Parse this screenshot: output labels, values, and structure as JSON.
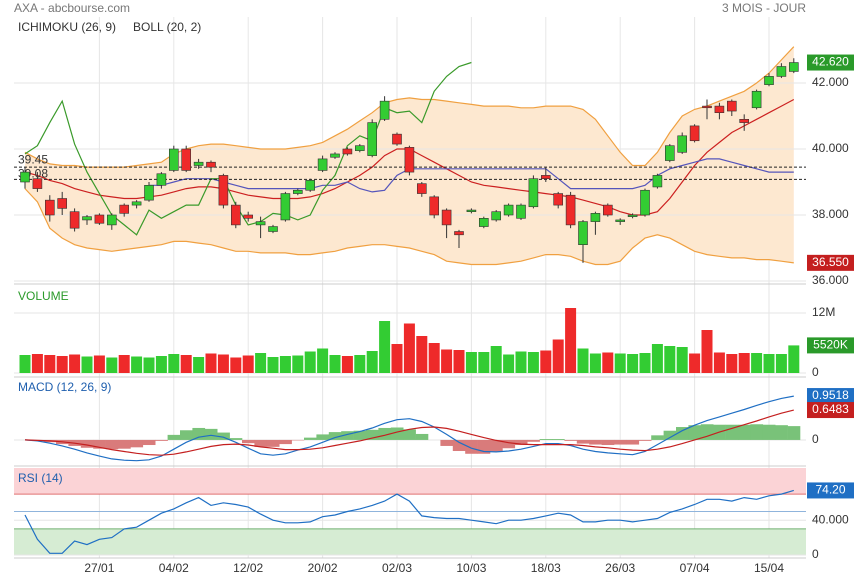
{
  "chart_data": [
    {
      "type": "candlestick",
      "title": "AXA - abcbourse.com",
      "subtitle": "3 MOIS - JOUR",
      "ylim": [
        36,
        44
      ],
      "yticks": [
        {
          "value": 42,
          "label": "42.000"
        },
        {
          "value": 40,
          "label": "40.000"
        },
        {
          "value": 38,
          "label": "38.000"
        },
        {
          "value": 36,
          "label": "36.000"
        }
      ],
      "up_color": "#33cc33",
      "down_color": "#ee2a2a",
      "open": [
        39.0,
        39.1,
        38.45,
        38.5,
        38.1,
        37.85,
        38.0,
        37.7,
        38.3,
        38.3,
        38.45,
        38.9,
        39.35,
        40.0,
        39.5,
        39.6,
        39.2,
        38.3,
        38.0,
        37.7,
        37.5,
        37.85,
        38.65,
        38.75,
        39.35,
        39.75,
        40.0,
        39.95,
        39.8,
        40.9,
        40.45,
        40.05,
        38.95,
        38.55,
        38.15,
        37.5,
        38.1,
        37.65,
        37.85,
        38.0,
        37.9,
        38.25,
        39.2,
        38.65,
        38.6,
        37.1,
        37.8,
        38.3,
        37.8,
        37.95,
        38.0,
        38.85,
        39.65,
        39.9,
        40.7,
        41.3,
        41.3,
        41.45,
        40.9,
        41.25,
        41.95,
        42.2,
        42.35
      ],
      "high": [
        39.45,
        39.3,
        38.6,
        38.7,
        38.2,
        38.0,
        38.05,
        38.05,
        38.35,
        38.45,
        39.0,
        39.3,
        40.1,
        40.1,
        39.7,
        39.65,
        39.25,
        38.4,
        38.1,
        37.95,
        37.7,
        38.7,
        38.8,
        39.1,
        39.8,
        39.9,
        40.05,
        40.15,
        40.9,
        41.6,
        40.5,
        40.1,
        39.0,
        38.6,
        38.2,
        37.55,
        38.2,
        37.95,
        38.15,
        38.35,
        38.35,
        39.2,
        39.45,
        38.7,
        38.7,
        37.85,
        38.1,
        38.35,
        37.9,
        38.05,
        38.8,
        39.25,
        40.15,
        40.5,
        40.75,
        41.5,
        41.4,
        41.5,
        41.05,
        41.8,
        42.3,
        42.6,
        42.75
      ],
      "low": [
        38.8,
        38.7,
        37.8,
        38.0,
        37.5,
        37.7,
        37.7,
        37.55,
        37.95,
        38.2,
        38.4,
        38.8,
        39.3,
        39.3,
        39.4,
        39.3,
        38.2,
        37.6,
        37.8,
        37.3,
        37.45,
        37.8,
        38.6,
        38.7,
        39.3,
        39.7,
        39.8,
        39.9,
        39.75,
        40.85,
        40.1,
        39.2,
        38.55,
        37.9,
        37.3,
        37.0,
        38.05,
        37.6,
        37.8,
        37.95,
        37.85,
        38.2,
        39.0,
        38.2,
        37.6,
        36.55,
        37.4,
        37.95,
        37.7,
        37.9,
        37.95,
        38.8,
        39.6,
        39.85,
        40.2,
        40.9,
        40.9,
        41.0,
        40.55,
        41.2,
        41.9,
        42.15,
        42.3
      ],
      "close": [
        39.3,
        38.8,
        38.0,
        38.2,
        37.6,
        37.95,
        37.75,
        38.0,
        38.05,
        38.4,
        38.9,
        39.25,
        40.0,
        39.35,
        39.6,
        39.45,
        38.3,
        37.7,
        37.9,
        37.8,
        37.65,
        38.65,
        38.75,
        39.05,
        39.7,
        39.85,
        39.85,
        40.1,
        40.8,
        41.45,
        40.15,
        39.3,
        38.65,
        38.0,
        37.7,
        37.4,
        38.15,
        37.9,
        38.1,
        38.3,
        38.3,
        39.1,
        39.1,
        38.3,
        37.7,
        37.8,
        38.05,
        38.0,
        37.85,
        38.0,
        38.75,
        39.2,
        40.1,
        40.4,
        40.25,
        41.25,
        41.1,
        41.15,
        40.8,
        41.75,
        42.2,
        42.5,
        42.62
      ],
      "close_label": "42.620",
      "levels": [
        39.45,
        39.08
      ],
      "bollinger": {
        "name": "BOLL (20, 2)",
        "color": "#f0a040",
        "fill": "#fde8d0",
        "mid_color": "#cc2020",
        "upper": [
          39.9,
          39.7,
          39.55,
          39.5,
          39.5,
          39.45,
          39.45,
          39.45,
          39.45,
          39.5,
          39.55,
          39.6,
          39.85,
          40.0,
          40.1,
          40.15,
          40.15,
          40.1,
          40.05,
          40.0,
          40.0,
          40.0,
          40.05,
          40.1,
          40.2,
          40.4,
          40.6,
          40.85,
          41.1,
          41.4,
          41.5,
          41.55,
          41.5,
          41.5,
          41.45,
          41.4,
          41.35,
          41.3,
          41.3,
          41.3,
          41.25,
          41.25,
          41.3,
          41.3,
          41.3,
          41.2,
          40.9,
          40.4,
          39.9,
          39.5,
          39.5,
          39.9,
          40.5,
          41.0,
          41.2,
          41.3,
          41.45,
          41.6,
          41.75,
          42.0,
          42.3,
          42.7,
          43.1
        ],
        "middle": [
          39.3,
          39.2,
          39.05,
          38.95,
          38.8,
          38.7,
          38.6,
          38.55,
          38.5,
          38.5,
          38.55,
          38.6,
          38.7,
          38.8,
          38.85,
          38.85,
          38.8,
          38.7,
          38.6,
          38.55,
          38.5,
          38.5,
          38.5,
          38.55,
          38.65,
          38.8,
          39.0,
          39.2,
          39.45,
          39.8,
          40.0,
          40.0,
          39.8,
          39.6,
          39.4,
          39.2,
          39.0,
          38.9,
          38.85,
          38.8,
          38.75,
          38.7,
          38.65,
          38.6,
          38.55,
          38.45,
          38.35,
          38.25,
          38.1,
          38.0,
          38.0,
          38.1,
          38.5,
          39.0,
          39.5,
          39.9,
          40.2,
          40.5,
          40.7,
          40.9,
          41.1,
          41.3,
          41.5
        ],
        "lower": [
          38.8,
          38.4,
          37.6,
          37.3,
          37.1,
          37.0,
          36.95,
          36.9,
          36.95,
          37.0,
          37.05,
          37.1,
          37.2,
          37.2,
          37.15,
          37.1,
          37.0,
          36.9,
          36.9,
          36.85,
          36.85,
          36.85,
          36.8,
          36.8,
          36.85,
          36.9,
          37.0,
          37.05,
          37.1,
          37.1,
          37.05,
          37.0,
          36.9,
          36.8,
          36.6,
          36.55,
          36.5,
          36.5,
          36.5,
          36.55,
          36.6,
          36.7,
          36.8,
          36.8,
          36.75,
          36.6,
          36.5,
          36.5,
          36.6,
          37.0,
          37.3,
          37.4,
          37.3,
          37.1,
          36.9,
          36.8,
          36.75,
          36.7,
          36.7,
          36.65,
          36.65,
          36.6,
          36.55
        ],
        "lower_label": "36.550"
      },
      "ichimoku": {
        "name": "ICHIMOKU (26, 9)",
        "color": "#1f5fae",
        "chikou_color": "#3a9a2a",
        "kijun_color": "#5555bb",
        "chikou": [
          39.85,
          40.1,
          40.8,
          41.45,
          40.15,
          39.3,
          38.65,
          38.0,
          37.7,
          37.4,
          38.15,
          37.9,
          38.1,
          38.3,
          38.3,
          39.1,
          39.1,
          38.3,
          37.7,
          37.8,
          38.05,
          38.0,
          37.85,
          38.0,
          38.75,
          39.2,
          40.1,
          40.4,
          40.25,
          41.25,
          41.1,
          41.15,
          40.8,
          41.75,
          42.2,
          42.5,
          42.62,
          null,
          null,
          null,
          null,
          null,
          null,
          null,
          null,
          null,
          null,
          null,
          null,
          null,
          null,
          null,
          null,
          null,
          null,
          null,
          null,
          null,
          null,
          null,
          null,
          null,
          null
        ],
        "kijun": [
          null,
          null,
          null,
          null,
          null,
          null,
          null,
          null,
          null,
          null,
          38.9,
          38.9,
          39.0,
          39.1,
          39.1,
          39.1,
          39.0,
          38.9,
          38.8,
          38.8,
          38.8,
          38.8,
          38.8,
          38.8,
          38.9,
          38.9,
          39.0,
          38.8,
          38.7,
          38.75,
          39.2,
          39.4,
          39.4,
          39.4,
          39.4,
          39.4,
          39.4,
          39.4,
          39.4,
          39.4,
          39.4,
          39.4,
          39.4,
          39.1,
          38.8,
          38.8,
          38.8,
          38.8,
          38.8,
          38.8,
          38.9,
          39.2,
          39.4,
          39.5,
          39.6,
          39.7,
          39.7,
          39.6,
          39.5,
          39.4,
          39.3,
          39.3,
          39.3
        ]
      }
    },
    {
      "type": "bar",
      "title": "VOLUME",
      "ylim": [
        0,
        17
      ],
      "yticks": [
        {
          "value": 12,
          "label": "12M"
        },
        0
      ],
      "values": [
        3.6,
        3.8,
        3.6,
        3.4,
        3.7,
        3.3,
        3.5,
        3.1,
        3.6,
        3.3,
        3.1,
        3.4,
        3.8,
        3.6,
        3.2,
        3.9,
        3.7,
        3.1,
        3.5,
        4.0,
        3.2,
        3.4,
        3.5,
        4.3,
        4.9,
        3.6,
        3.4,
        3.6,
        4.4,
        10.4,
        5.8,
        9.9,
        7.4,
        6.0,
        4.7,
        4.6,
        4.2,
        4.2,
        5.4,
        3.7,
        4.3,
        4.2,
        4.5,
        6.7,
        13.0,
        4.9,
        3.9,
        4.1,
        3.9,
        3.8,
        4.0,
        5.8,
        5.4,
        5.2,
        3.9,
        8.6,
        4.1,
        3.8,
        4.0,
        4.0,
        3.8,
        3.8,
        5.52
      ],
      "last_label": "5520K"
    },
    {
      "type": "line",
      "title": "MACD (12, 26, 9)",
      "ylim": [
        -0.5,
        1.3
      ],
      "yticks": [
        0
      ],
      "histogram": {
        "up_color": "#79c279",
        "down_color": "#d97b7b",
        "values": [
          0,
          -0.01,
          -0.05,
          -0.09,
          -0.13,
          -0.17,
          -0.19,
          -0.2,
          -0.19,
          -0.16,
          -0.11,
          -0.02,
          0.11,
          0.21,
          0.26,
          0.24,
          0.16,
          0.04,
          -0.07,
          -0.15,
          -0.15,
          -0.09,
          -0.01,
          0.05,
          0.12,
          0.17,
          0.19,
          0.2,
          0.22,
          0.26,
          0.27,
          0.23,
          0.13,
          0.0,
          -0.13,
          -0.24,
          -0.3,
          -0.3,
          -0.25,
          -0.18,
          -0.11,
          -0.04,
          0.02,
          0.02,
          -0.02,
          -0.08,
          -0.1,
          -0.11,
          -0.1,
          -0.1,
          -0.02,
          0.1,
          0.2,
          0.28,
          0.32,
          0.34,
          0.33,
          0.33,
          0.33,
          0.34,
          0.33,
          0.32,
          0.3
        ]
      },
      "series": [
        {
          "color": "#1f6fc4",
          "last_label": "0.9518",
          "values": [
            0,
            -0.02,
            -0.07,
            -0.13,
            -0.2,
            -0.28,
            -0.35,
            -0.41,
            -0.44,
            -0.45,
            -0.43,
            -0.35,
            -0.2,
            -0.05,
            0.06,
            0.1,
            0.06,
            -0.05,
            -0.18,
            -0.3,
            -0.33,
            -0.3,
            -0.22,
            -0.15,
            -0.05,
            0.05,
            0.12,
            0.18,
            0.26,
            0.36,
            0.44,
            0.46,
            0.4,
            0.28,
            0.12,
            -0.05,
            -0.18,
            -0.25,
            -0.26,
            -0.24,
            -0.2,
            -0.14,
            -0.08,
            -0.08,
            -0.12,
            -0.2,
            -0.25,
            -0.28,
            -0.3,
            -0.32,
            -0.25,
            -0.1,
            0.05,
            0.2,
            0.32,
            0.42,
            0.5,
            0.58,
            0.66,
            0.75,
            0.83,
            0.9,
            0.9518
          ]
        },
        {
          "color": "#c41f1f",
          "last_label": "0.6483",
          "values": [
            0,
            -0.01,
            -0.02,
            -0.04,
            -0.07,
            -0.11,
            -0.16,
            -0.21,
            -0.25,
            -0.29,
            -0.32,
            -0.33,
            -0.31,
            -0.26,
            -0.2,
            -0.14,
            -0.1,
            -0.09,
            -0.11,
            -0.15,
            -0.18,
            -0.21,
            -0.21,
            -0.2,
            -0.17,
            -0.12,
            -0.07,
            -0.02,
            0.04,
            0.1,
            0.17,
            0.23,
            0.27,
            0.28,
            0.25,
            0.19,
            0.12,
            0.05,
            -0.01,
            -0.06,
            -0.09,
            -0.1,
            -0.1,
            -0.1,
            -0.1,
            -0.12,
            -0.15,
            -0.17,
            -0.2,
            -0.22,
            -0.23,
            -0.2,
            -0.15,
            -0.08,
            0.0,
            0.08,
            0.17,
            0.25,
            0.33,
            0.41,
            0.5,
            0.58,
            0.6483
          ]
        }
      ]
    },
    {
      "type": "line",
      "title": "RSI (14)",
      "ylim": [
        0,
        100
      ],
      "yticks": [
        {
          "value": 40,
          "label": "40.000"
        },
        0
      ],
      "bands": {
        "overbought": [
          70,
          100
        ],
        "oversold": [
          0,
          30
        ],
        "midline": 50
      },
      "categories": [
        null,
        null,
        null,
        null,
        null,
        null,
        "27/01",
        null,
        null,
        null,
        null,
        null,
        "04/02",
        null,
        null,
        null,
        null,
        null,
        "12/02",
        null,
        null,
        null,
        null,
        null,
        "20/02",
        null,
        null,
        null,
        null,
        null,
        "02/03",
        null,
        null,
        null,
        null,
        null,
        "10/03",
        null,
        null,
        null,
        null,
        null,
        "18/03",
        null,
        null,
        null,
        null,
        null,
        "26/03",
        null,
        null,
        null,
        null,
        null,
        "07/04",
        null,
        null,
        null,
        null,
        null,
        "15/04",
        null,
        null
      ],
      "series": [
        {
          "color": "#1f6fc4",
          "last_label": "74.20",
          "values": [
            46,
            18,
            2,
            2,
            16,
            12,
            18,
            20,
            30,
            32,
            40,
            48,
            53,
            60,
            66,
            57,
            60,
            58,
            55,
            47,
            40,
            37,
            37,
            38,
            44,
            46,
            50,
            53,
            57,
            62,
            70,
            62,
            45,
            43,
            42,
            42,
            40,
            38,
            36,
            40,
            40,
            42,
            45,
            48,
            46,
            38,
            38,
            40,
            40,
            38,
            40,
            42,
            49,
            53,
            58,
            64,
            64,
            62,
            66,
            64,
            68,
            70,
            74.2
          ]
        }
      ]
    }
  ]
}
